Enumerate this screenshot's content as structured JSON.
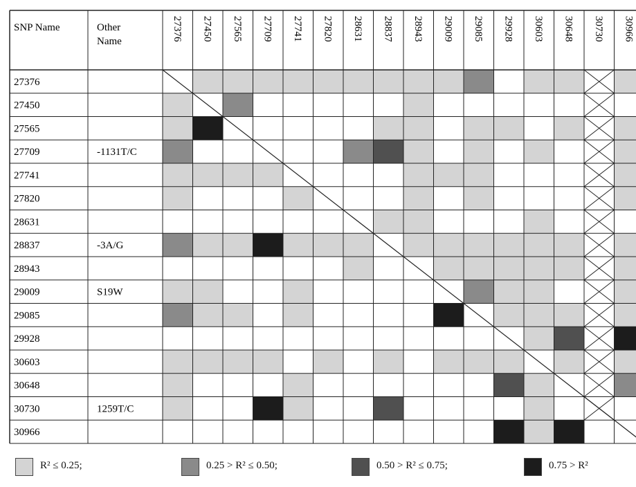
{
  "table": {
    "header_col1": "SNP Name",
    "header_col2": "Other Name"
  },
  "chart_data": {
    "type": "heatmap",
    "title": "",
    "xlabel": "",
    "ylabel": "",
    "snps": [
      "27376",
      "27450",
      "27565",
      "27709",
      "27741",
      "27820",
      "28631",
      "28837",
      "28943",
      "29009",
      "29085",
      "29928",
      "30603",
      "30648",
      "30730",
      "30966"
    ],
    "other_names": [
      "",
      "",
      "",
      "-1131T/C",
      "",
      "",
      "",
      "-3A/G",
      "",
      "S19W",
      "",
      "",
      "",
      "",
      "1259T/C",
      ""
    ],
    "categories_legend": [
      {
        "level": 1,
        "label": "R² ≤ 0.25;",
        "color": "#d4d4d4"
      },
      {
        "level": 2,
        "label": "0.25 > R² ≤ 0.50;",
        "color": "#8a8a8a"
      },
      {
        "level": 3,
        "label": "0.50 > R² ≤ 0.75;",
        "color": "#505050"
      },
      {
        "level": 4,
        "label": "0.75 > R²",
        "color": "#1c1c1c"
      }
    ],
    "excluded_column": "30730",
    "matrix": [
      [
        -1,
        1,
        1,
        1,
        1,
        1,
        1,
        1,
        1,
        1,
        2,
        0,
        1,
        1,
        -2,
        1
      ],
      [
        1,
        -1,
        2,
        0,
        0,
        0,
        0,
        0,
        1,
        0,
        0,
        0,
        0,
        0,
        -2,
        0
      ],
      [
        1,
        4,
        -1,
        0,
        0,
        0,
        0,
        1,
        1,
        0,
        1,
        1,
        0,
        1,
        -2,
        1
      ],
      [
        2,
        0,
        0,
        -1,
        0,
        0,
        2,
        3,
        1,
        0,
        1,
        0,
        1,
        0,
        -2,
        1
      ],
      [
        1,
        1,
        1,
        1,
        -1,
        0,
        0,
        0,
        1,
        1,
        1,
        0,
        0,
        0,
        -2,
        1
      ],
      [
        1,
        0,
        0,
        0,
        1,
        -1,
        0,
        0,
        1,
        0,
        1,
        0,
        0,
        0,
        -2,
        1
      ],
      [
        0,
        0,
        0,
        0,
        0,
        0,
        -1,
        1,
        1,
        0,
        0,
        0,
        1,
        0,
        -2,
        0
      ],
      [
        2,
        1,
        1,
        4,
        1,
        1,
        1,
        -1,
        1,
        1,
        1,
        1,
        1,
        1,
        -2,
        1
      ],
      [
        0,
        0,
        0,
        0,
        0,
        0,
        1,
        0,
        -1,
        1,
        1,
        1,
        1,
        1,
        -2,
        1
      ],
      [
        1,
        1,
        0,
        0,
        1,
        0,
        0,
        0,
        0,
        -1,
        2,
        1,
        1,
        0,
        -2,
        1
      ],
      [
        2,
        1,
        1,
        0,
        1,
        0,
        0,
        0,
        0,
        4,
        -1,
        1,
        1,
        1,
        -2,
        1
      ],
      [
        0,
        0,
        0,
        0,
        0,
        0,
        0,
        0,
        0,
        0,
        0,
        -1,
        1,
        3,
        -2,
        4
      ],
      [
        1,
        1,
        1,
        1,
        0,
        1,
        0,
        1,
        0,
        1,
        1,
        1,
        -1,
        1,
        -2,
        1
      ],
      [
        1,
        0,
        0,
        0,
        1,
        0,
        0,
        0,
        0,
        0,
        0,
        3,
        1,
        -1,
        -2,
        2
      ],
      [
        1,
        0,
        0,
        4,
        1,
        0,
        0,
        3,
        0,
        0,
        0,
        0,
        1,
        0,
        -2,
        0
      ],
      [
        0,
        0,
        0,
        0,
        0,
        0,
        0,
        0,
        0,
        0,
        0,
        4,
        1,
        4,
        0,
        -1
      ]
    ]
  }
}
